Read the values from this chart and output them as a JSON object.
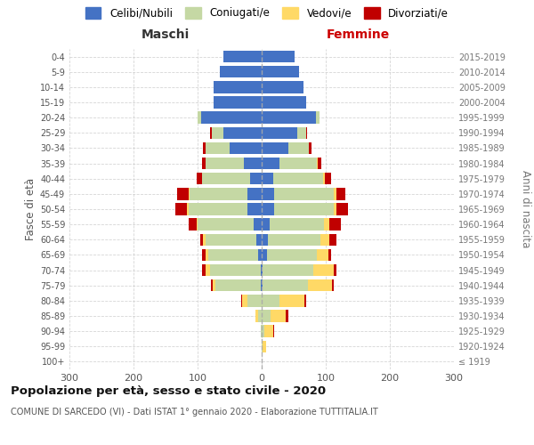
{
  "age_groups": [
    "100+",
    "95-99",
    "90-94",
    "85-89",
    "80-84",
    "75-79",
    "70-74",
    "65-69",
    "60-64",
    "55-59",
    "50-54",
    "45-49",
    "40-44",
    "35-39",
    "30-34",
    "25-29",
    "20-24",
    "15-19",
    "10-14",
    "5-9",
    "0-4"
  ],
  "birth_years": [
    "≤ 1919",
    "1920-1924",
    "1925-1929",
    "1930-1934",
    "1935-1939",
    "1940-1944",
    "1945-1949",
    "1950-1954",
    "1955-1959",
    "1960-1964",
    "1965-1969",
    "1970-1974",
    "1975-1979",
    "1980-1984",
    "1985-1989",
    "1990-1994",
    "1995-1999",
    "2000-2004",
    "2005-2009",
    "2010-2014",
    "2015-2019"
  ],
  "males_celibi": [
    0,
    0,
    0,
    0,
    0,
    2,
    2,
    5,
    8,
    12,
    22,
    22,
    18,
    28,
    50,
    60,
    95,
    75,
    75,
    65,
    60
  ],
  "males_coniugati": [
    0,
    0,
    2,
    5,
    22,
    70,
    78,
    78,
    80,
    88,
    92,
    90,
    75,
    60,
    38,
    18,
    5,
    0,
    0,
    0,
    0
  ],
  "males_vedovi": [
    0,
    0,
    0,
    5,
    8,
    5,
    8,
    5,
    3,
    2,
    3,
    2,
    0,
    0,
    0,
    0,
    0,
    0,
    0,
    0,
    0
  ],
  "males_divorziati": [
    0,
    0,
    0,
    0,
    2,
    2,
    5,
    5,
    5,
    12,
    18,
    18,
    8,
    5,
    4,
    2,
    0,
    0,
    0,
    0,
    0
  ],
  "females_nubili": [
    0,
    0,
    0,
    0,
    0,
    2,
    2,
    8,
    10,
    12,
    20,
    20,
    18,
    28,
    42,
    55,
    85,
    70,
    65,
    58,
    52
  ],
  "females_coniugate": [
    0,
    2,
    4,
    14,
    28,
    70,
    78,
    78,
    82,
    85,
    92,
    92,
    78,
    58,
    32,
    14,
    5,
    0,
    0,
    0,
    0
  ],
  "females_vedove": [
    0,
    5,
    14,
    24,
    38,
    38,
    32,
    18,
    13,
    8,
    5,
    5,
    3,
    2,
    0,
    0,
    0,
    0,
    0,
    0,
    0
  ],
  "females_divorziate": [
    0,
    0,
    2,
    3,
    3,
    3,
    5,
    5,
    12,
    18,
    18,
    14,
    9,
    5,
    4,
    2,
    0,
    0,
    0,
    0,
    0
  ],
  "colors": {
    "celibi": "#4472c4",
    "coniugati": "#c5d8a4",
    "vedovi": "#ffd966",
    "divorziati": "#c00000"
  },
  "xlim": 300,
  "title": "Popolazione per età, sesso e stato civile - 2020",
  "subtitle": "COMUNE DI SARCEDO (VI) - Dati ISTAT 1° gennaio 2020 - Elaborazione TUTTITALIA.IT",
  "ylabel_left": "Fasce di età",
  "ylabel_right": "Anni di nascita",
  "xlabel_left": "Maschi",
  "xlabel_right": "Femmine",
  "legend_labels": [
    "Celibi/Nubili",
    "Coniugati/e",
    "Vedovi/e",
    "Divorziati/e"
  ],
  "background_color": "#ffffff",
  "grid_color": "#cccccc"
}
